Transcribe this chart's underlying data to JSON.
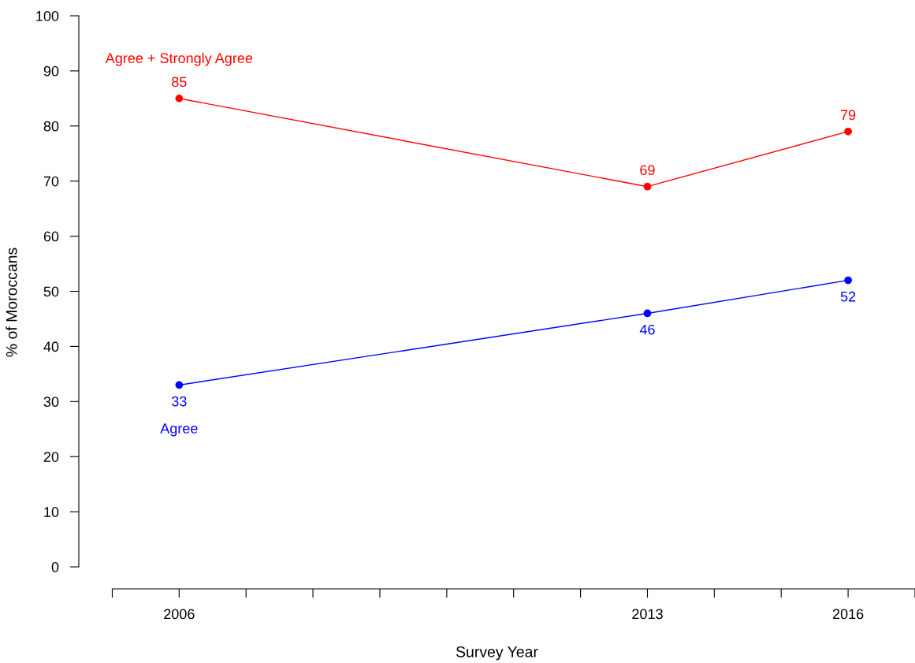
{
  "chart_data": {
    "type": "line",
    "xlabel": "Survey Year",
    "ylabel": "% of Moroccans",
    "x": [
      2006,
      2013,
      2016
    ],
    "series": [
      {
        "name": "Agree + Strongly Agree",
        "color": "#ff0000",
        "values": [
          85,
          69,
          79
        ]
      },
      {
        "name": "Agree",
        "color": "#0000ff",
        "values": [
          33,
          46,
          52
        ]
      }
    ],
    "xlim": [
      2004.5,
      2017
    ],
    "xticks": [
      {
        "value": 2005,
        "label": null
      },
      2006,
      {
        "value": 2007,
        "label": null
      },
      {
        "value": 2008,
        "label": null
      },
      {
        "value": 2009,
        "label": null
      },
      {
        "value": 2010,
        "label": null
      },
      {
        "value": 2011,
        "label": null
      },
      {
        "value": 2012,
        "label": null
      },
      2013,
      {
        "value": 2014,
        "label": null
      },
      {
        "value": 2015,
        "label": null
      },
      2016,
      {
        "value": 2017,
        "label": null
      }
    ],
    "ylim": [
      -4,
      100
    ],
    "yticks": [
      0,
      10,
      20,
      30,
      40,
      50,
      60,
      70,
      80,
      90,
      100
    ],
    "data_labels": true,
    "marker": "circle",
    "line_style": "solid",
    "grid": false,
    "legend": false
  }
}
